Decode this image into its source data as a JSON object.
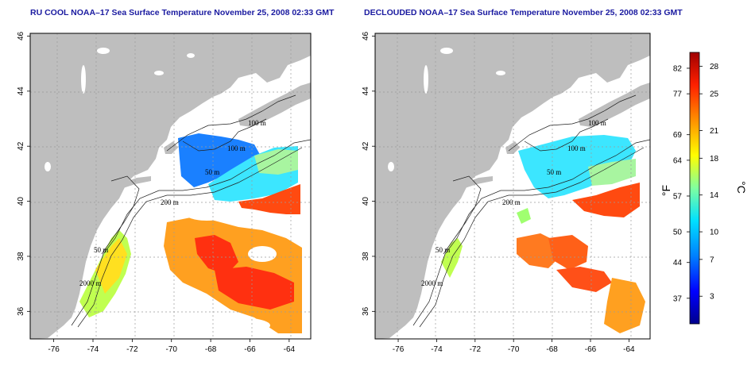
{
  "maps": [
    {
      "title": "RU COOL NOAA–17 Sea Surface Temperature November 25, 2008 02:33 GMT",
      "contour_labels": [
        "100 m",
        "100 m",
        "50 m",
        "200 m",
        "50 m",
        "2000 m"
      ]
    },
    {
      "title": "DECLOUDED NOAA–17 Sea Surface Temperature November 25, 2008 02:33 GMT",
      "contour_labels": [
        "100 m",
        "100 m",
        "50 m",
        "200 m",
        "50 m",
        "2000 m"
      ]
    }
  ],
  "axes": {
    "x_ticks": [
      "-76",
      "-74",
      "-72",
      "-70",
      "-68",
      "-66",
      "-64"
    ],
    "y_ticks": [
      "46",
      "44",
      "42",
      "40",
      "38",
      "36"
    ]
  },
  "colorbar": {
    "fahrenheit_ticks": [
      "82",
      "77",
      "69",
      "64",
      "57",
      "50",
      "44",
      "37"
    ],
    "celsius_ticks": [
      "28",
      "25",
      "21",
      "18",
      "14",
      "10",
      "7",
      "3"
    ],
    "fahrenheit_label": "°F",
    "celsius_label": "°C",
    "colors": [
      "#00008c",
      "#0000ff",
      "#0080ff",
      "#00e0ff",
      "#80ffa0",
      "#ffff00",
      "#ff9000",
      "#ff2000",
      "#a00000"
    ]
  },
  "colors": {
    "land": "#bebebe",
    "water": "#ffffff",
    "title": "#1a1aa0"
  }
}
